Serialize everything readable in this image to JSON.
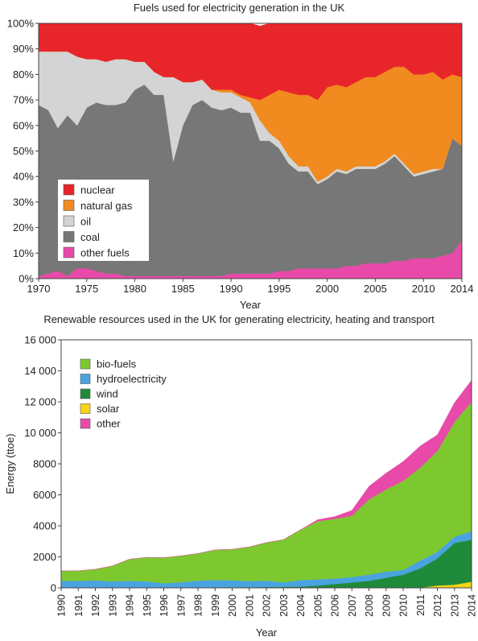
{
  "chart_data": [
    {
      "type": "area",
      "stacked": true,
      "percent": true,
      "title": "Fuels used for electricity generation in the UK",
      "xlabel": "Year",
      "ylabel": "",
      "xlim": [
        1970,
        2014
      ],
      "ylim": [
        0,
        100
      ],
      "x_ticks": [
        "1970",
        "1975",
        "1980",
        "1985",
        "1990",
        "1995",
        "2000",
        "2005",
        "2010",
        "2014"
      ],
      "y_ticks": [
        "0%",
        "10%",
        "20%",
        "30%",
        "40%",
        "50%",
        "60%",
        "70%",
        "80%",
        "90%",
        "100%"
      ],
      "grid": false,
      "legend_position": "bottom-left",
      "x": [
        1970,
        1971,
        1972,
        1973,
        1974,
        1975,
        1976,
        1977,
        1978,
        1979,
        1980,
        1981,
        1982,
        1983,
        1984,
        1985,
        1986,
        1987,
        1988,
        1989,
        1990,
        1991,
        1992,
        1993,
        1994,
        1995,
        1996,
        1997,
        1998,
        1999,
        2000,
        2001,
        2002,
        2003,
        2004,
        2005,
        2006,
        2007,
        2008,
        2009,
        2010,
        2011,
        2012,
        2013,
        2014
      ],
      "series": [
        {
          "name": "other fuels",
          "color": "#e84aa9",
          "values": [
            1,
            2,
            3,
            1,
            4,
            4,
            3,
            2,
            2,
            1,
            1,
            1,
            1,
            1,
            1,
            1,
            1,
            1,
            1,
            1,
            2,
            2,
            2,
            2,
            2,
            3,
            3,
            4,
            4,
            4,
            4,
            4,
            5,
            5,
            6,
            6,
            6,
            7,
            7,
            8,
            8,
            8,
            9,
            10,
            15
          ]
        },
        {
          "name": "coal",
          "color": "#777777",
          "values": [
            67,
            64,
            56,
            63,
            56,
            63,
            66,
            66,
            66,
            68,
            73,
            75,
            71,
            71,
            45,
            59,
            67,
            69,
            66,
            65,
            65,
            63,
            63,
            52,
            52,
            48,
            42,
            38,
            38,
            33,
            35,
            38,
            36,
            38,
            37,
            37,
            39,
            41,
            37,
            32,
            33,
            34,
            34,
            45,
            37
          ]
        },
        {
          "name": "oil",
          "color": "#d4d4d4",
          "values": [
            21,
            23,
            30,
            25,
            27,
            19,
            17,
            17,
            18,
            17,
            11,
            9,
            9,
            7,
            33,
            17,
            9,
            8,
            7,
            7,
            6,
            6,
            4,
            8,
            3,
            3,
            3,
            2,
            2,
            1,
            1,
            1,
            1,
            1,
            1,
            1,
            1,
            1,
            1,
            1,
            1,
            1,
            0,
            0,
            0
          ]
        },
        {
          "name": "natural gas",
          "color": "#f18a1f",
          "values": [
            0,
            0,
            0,
            0,
            0,
            0,
            0,
            0,
            0,
            0,
            0,
            0,
            0,
            0,
            0,
            0,
            0,
            0,
            0,
            1,
            1,
            1,
            2,
            8,
            15,
            20,
            25,
            28,
            28,
            32,
            35,
            33,
            33,
            33,
            35,
            35,
            35,
            34,
            38,
            39,
            38,
            38,
            35,
            25,
            27
          ]
        },
        {
          "name": "nuclear",
          "color": "#e8252a",
          "values": [
            11,
            11,
            11,
            11,
            13,
            14,
            14,
            15,
            14,
            14,
            15,
            15,
            19,
            21,
            21,
            23,
            23,
            22,
            26,
            26,
            26,
            28,
            29,
            29,
            28,
            26,
            27,
            28,
            28,
            30,
            25,
            24,
            25,
            23,
            21,
            21,
            19,
            17,
            17,
            20,
            20,
            19,
            22,
            20,
            21
          ]
        }
      ]
    },
    {
      "type": "area",
      "stacked": true,
      "title": "Renewable resources used in the UK for generating electricity, heating and transport",
      "xlabel": "Year",
      "ylabel": "Energy (ttoe)",
      "xlim": [
        1990,
        2014
      ],
      "ylim": [
        0,
        16000
      ],
      "x_ticks": [
        "1990",
        "1991",
        "1992",
        "1993",
        "1994",
        "1995",
        "1996",
        "1997",
        "1998",
        "1999",
        "2000",
        "2001",
        "2002",
        "2003",
        "2004",
        "2005",
        "2006",
        "2007",
        "2008",
        "2009",
        "2010",
        "2011",
        "2012",
        "2013",
        "2014"
      ],
      "y_ticks": [
        "0",
        "2000",
        "4000",
        "6000",
        "8000",
        "10 000",
        "12 000",
        "14 000",
        "16 000"
      ],
      "grid": false,
      "legend_position": "top-left",
      "x": [
        1990,
        1991,
        1992,
        1993,
        1994,
        1995,
        1996,
        1997,
        1998,
        1999,
        2000,
        2001,
        2002,
        2003,
        2004,
        2005,
        2006,
        2007,
        2008,
        2009,
        2010,
        2011,
        2012,
        2013,
        2014
      ],
      "series": [
        {
          "name": "solar",
          "color": "#f7d417",
          "values": [
            0,
            0,
            0,
            0,
            0,
            0,
            0,
            0,
            0,
            0,
            0,
            0,
            0,
            0,
            0,
            0,
            0,
            0,
            0,
            0,
            0,
            10,
            150,
            200,
            400
          ]
        },
        {
          "name": "wind",
          "color": "#1f8a3a",
          "values": [
            0,
            0,
            0,
            0,
            0,
            0,
            0,
            10,
            20,
            30,
            40,
            40,
            50,
            60,
            80,
            150,
            250,
            350,
            450,
            650,
            850,
            1250,
            1750,
            2700,
            2700
          ]
        },
        {
          "name": "hydroelectricity",
          "color": "#4aa3df",
          "values": [
            450,
            450,
            480,
            420,
            450,
            420,
            300,
            350,
            450,
            470,
            450,
            400,
            420,
            300,
            420,
            400,
            350,
            350,
            400,
            400,
            300,
            500,
            420,
            400,
            550
          ]
        },
        {
          "name": "bio-fuels",
          "color": "#7dc82e",
          "values": [
            650,
            650,
            720,
            1000,
            1400,
            1550,
            1650,
            1700,
            1750,
            1950,
            2000,
            2200,
            2450,
            2750,
            3250,
            3750,
            3850,
            3950,
            4850,
            5300,
            5750,
            6000,
            6500,
            7400,
            8350
          ]
        },
        {
          "name": "other",
          "color": "#e84aa9",
          "values": [
            0,
            0,
            0,
            0,
            0,
            0,
            0,
            0,
            0,
            0,
            0,
            0,
            0,
            0,
            0,
            100,
            150,
            350,
            850,
            1050,
            1250,
            1400,
            1050,
            1250,
            1400
          ]
        }
      ]
    }
  ]
}
